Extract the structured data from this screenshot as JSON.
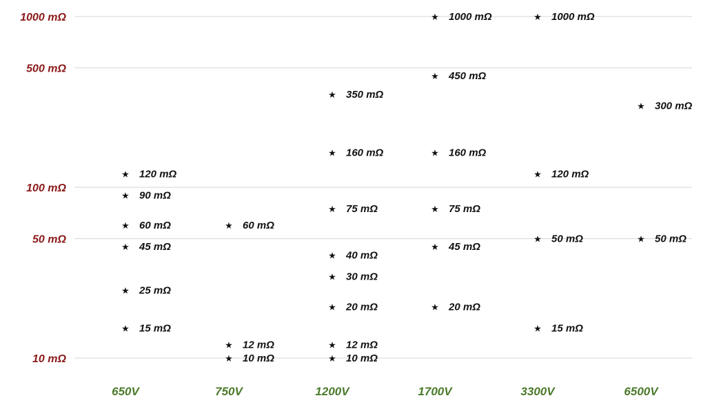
{
  "chart_data": {
    "type": "scatter",
    "title": "",
    "xlabel": "",
    "ylabel": "",
    "y_scale": "log",
    "ylim": [
      10,
      1000
    ],
    "y_ticks": [
      10,
      50,
      100,
      500,
      1000
    ],
    "y_tick_labels": [
      "10 mΩ",
      "50 mΩ",
      "100 mΩ",
      "500 mΩ",
      "1000 mΩ"
    ],
    "categories": [
      "650V",
      "750V",
      "1200V",
      "1700V",
      "3300V",
      "6500V"
    ],
    "grid": true,
    "marker": "★",
    "colors": {
      "y_ticks": "#8b1a1a",
      "x_ticks": "#4a7a2a",
      "points": "#111111",
      "grid": "#d6d6d6"
    },
    "points": [
      {
        "x": "650V",
        "y": 120,
        "label": "120 mΩ"
      },
      {
        "x": "650V",
        "y": 90,
        "label": "90 mΩ"
      },
      {
        "x": "650V",
        "y": 60,
        "label": "60 mΩ"
      },
      {
        "x": "650V",
        "y": 45,
        "label": "45 mΩ"
      },
      {
        "x": "650V",
        "y": 25,
        "label": "25 mΩ"
      },
      {
        "x": "650V",
        "y": 15,
        "label": "15 mΩ"
      },
      {
        "x": "750V",
        "y": 60,
        "label": "60 mΩ"
      },
      {
        "x": "750V",
        "y": 12,
        "label": "12 mΩ"
      },
      {
        "x": "750V",
        "y": 10,
        "label": "10 mΩ"
      },
      {
        "x": "1200V",
        "y": 350,
        "label": "350 mΩ"
      },
      {
        "x": "1200V",
        "y": 160,
        "label": "160 mΩ"
      },
      {
        "x": "1200V",
        "y": 75,
        "label": "75 mΩ"
      },
      {
        "x": "1200V",
        "y": 40,
        "label": "40 mΩ"
      },
      {
        "x": "1200V",
        "y": 30,
        "label": "30 mΩ"
      },
      {
        "x": "1200V",
        "y": 20,
        "label": "20 mΩ"
      },
      {
        "x": "1200V",
        "y": 12,
        "label": "12 mΩ"
      },
      {
        "x": "1200V",
        "y": 10,
        "label": "10 mΩ"
      },
      {
        "x": "1700V",
        "y": 1000,
        "label": "1000 mΩ"
      },
      {
        "x": "1700V",
        "y": 450,
        "label": "450 mΩ"
      },
      {
        "x": "1700V",
        "y": 160,
        "label": "160 mΩ"
      },
      {
        "x": "1700V",
        "y": 75,
        "label": "75 mΩ"
      },
      {
        "x": "1700V",
        "y": 45,
        "label": "45 mΩ"
      },
      {
        "x": "1700V",
        "y": 20,
        "label": "20 mΩ"
      },
      {
        "x": "3300V",
        "y": 1000,
        "label": "1000 mΩ"
      },
      {
        "x": "3300V",
        "y": 120,
        "label": "120 mΩ"
      },
      {
        "x": "3300V",
        "y": 50,
        "label": "50 mΩ"
      },
      {
        "x": "3300V",
        "y": 15,
        "label": "15 mΩ"
      },
      {
        "x": "6500V",
        "y": 300,
        "label": "300 mΩ"
      },
      {
        "x": "6500V",
        "y": 50,
        "label": "50 mΩ"
      }
    ]
  }
}
